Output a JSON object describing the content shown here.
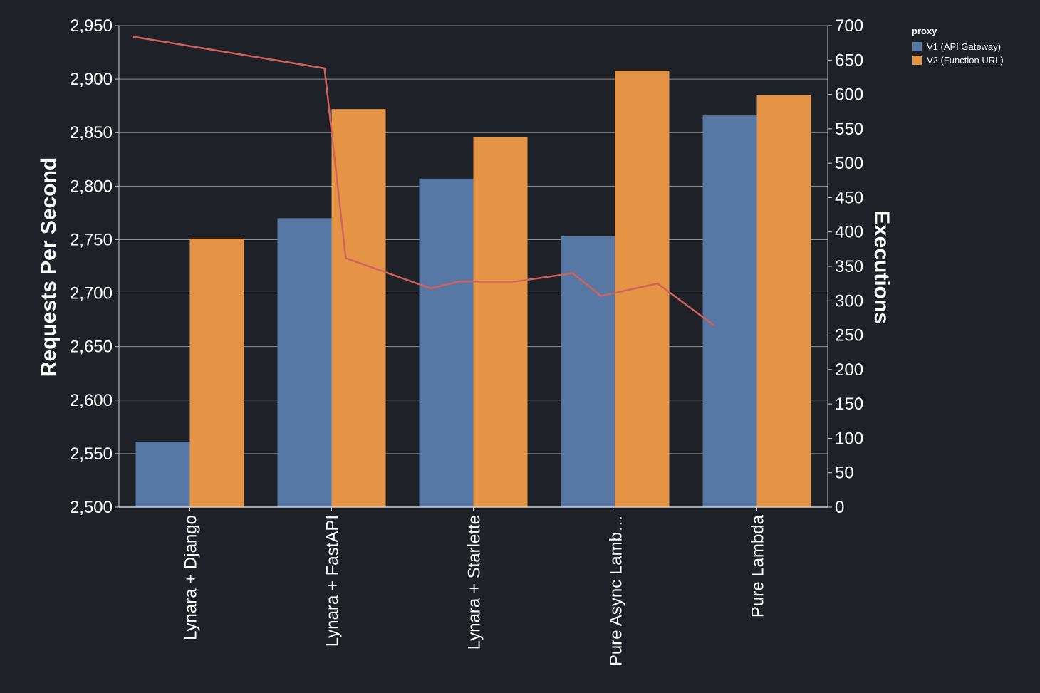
{
  "chart_data": {
    "type": "bar",
    "categories": [
      "Lynara + Django",
      "Lynara + FastAPI",
      "Lynara + Starlette",
      "Pure Async Lamb…",
      "Pure Lambda"
    ],
    "series": [
      {
        "name": "V1 (API Gateway)",
        "color": "#5778a4",
        "values": [
          2561,
          2770,
          2807,
          2753,
          2866
        ]
      },
      {
        "name": "V2 (Function URL)",
        "color": "#e49444",
        "values": [
          2751,
          2872,
          2846,
          2908,
          2885
        ]
      }
    ],
    "line_series": {
      "name": "Executions",
      "color": "#d1615d",
      "x": [
        0.1,
        1.45,
        1.6,
        2.2,
        2.4,
        2.8,
        3.2,
        3.4,
        3.8,
        4.2
      ],
      "values": [
        684,
        638,
        362,
        318,
        328,
        328,
        340,
        307,
        325,
        264
      ]
    },
    "ylabel": "Requests Per Second",
    "ylim": [
      2500,
      2950
    ],
    "yticks": [
      "2,500",
      "2,550",
      "2,600",
      "2,650",
      "2,700",
      "2,750",
      "2,800",
      "2,850",
      "2,900",
      "2,950"
    ],
    "y2label": "Executions",
    "y2lim": [
      0,
      700
    ],
    "y2ticks": [
      "0",
      "50",
      "100",
      "150",
      "200",
      "250",
      "300",
      "350",
      "400",
      "450",
      "500",
      "550",
      "600",
      "650",
      "700"
    ],
    "legend": {
      "title": "proxy",
      "placement": "top-right",
      "items": [
        "V1 (API Gateway)",
        "V2 (Function URL)"
      ]
    },
    "grid": true
  }
}
